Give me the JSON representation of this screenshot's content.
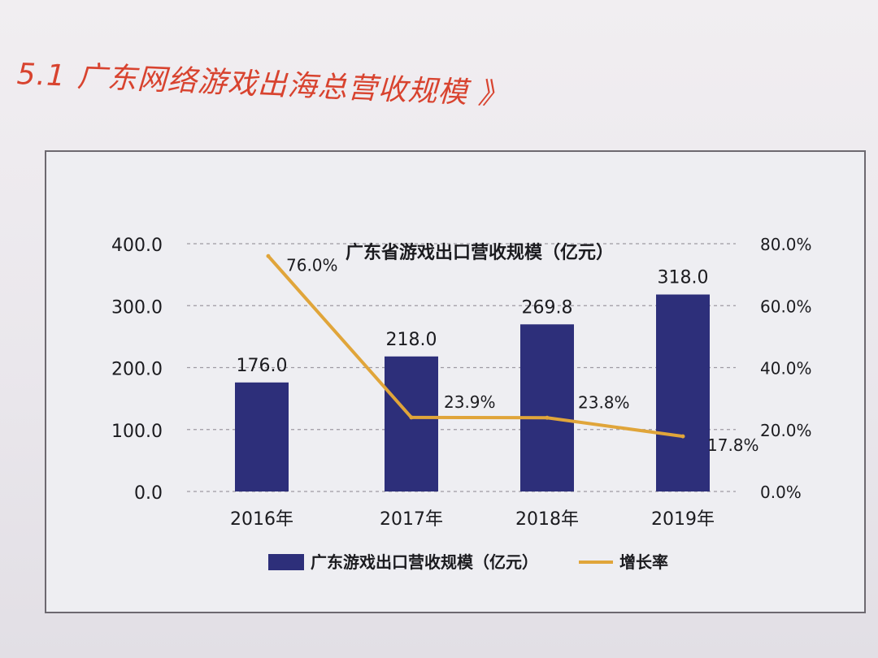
{
  "section": {
    "number": "5.1",
    "title": "广东网络游戏出海总营收规模",
    "suffix": "》"
  },
  "chart_data": {
    "type": "bar",
    "title": "广东省游戏出口营收规模（亿元）",
    "categories": [
      "2016年",
      "2017年",
      "2018年",
      "2019年"
    ],
    "series": [
      {
        "name": "广东游戏出口营收规模（亿元）",
        "type": "bar",
        "axis": "left",
        "values": [
          176.0,
          218.0,
          269.8,
          318.0
        ],
        "labels": [
          "176.0",
          "218.0",
          "269.8",
          "318.0"
        ],
        "color": "#2d2f7a"
      },
      {
        "name": "增长率",
        "type": "line",
        "axis": "right",
        "values": [
          76.0,
          23.9,
          23.8,
          17.8
        ],
        "labels": [
          "76.0%",
          "23.9%",
          "23.8%",
          "17.8%"
        ],
        "color": "#e0a53a"
      }
    ],
    "y_left": {
      "range": [
        0,
        400
      ],
      "ticks": [
        0,
        100,
        200,
        300,
        400
      ],
      "tick_labels": [
        "0.0",
        "100.0",
        "200.0",
        "300.0",
        "400.0"
      ]
    },
    "y_right": {
      "range": [
        0,
        80
      ],
      "ticks": [
        0,
        20,
        40,
        60,
        80
      ],
      "tick_labels": [
        "0.0%",
        "20.0%",
        "40.0%",
        "60.0%",
        "80.0%"
      ]
    },
    "grid": "dashed-horizontal",
    "legend_position": "bottom"
  }
}
